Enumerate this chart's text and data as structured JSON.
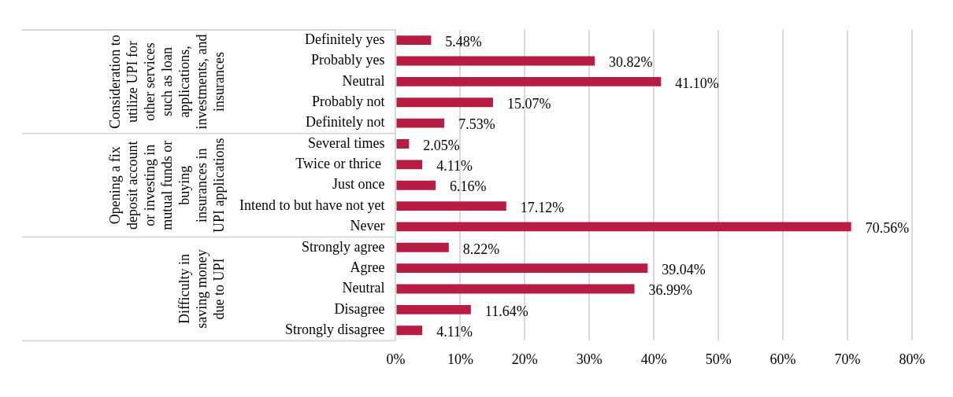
{
  "chart_data": {
    "type": "bar",
    "orientation": "horizontal",
    "categories": [
      "Definitely yes",
      "Probably yes",
      "Neutral",
      "Probably not",
      "Definitely not",
      "Several times",
      "Twice or thrice ",
      "Just once",
      "Intend to but have not yet",
      "Never",
      "Strongly agree",
      "Agree",
      "Neutral",
      "Disagree",
      "Strongly disagree"
    ],
    "values": [
      5.48,
      30.82,
      41.1,
      15.07,
      7.53,
      2.05,
      4.11,
      6.16,
      17.12,
      70.56,
      8.22,
      39.04,
      36.99,
      11.64,
      4.11
    ],
    "value_labels": [
      "5.48%",
      "30.82%",
      "41.10%",
      "15.07%",
      "7.53%",
      "2.05%",
      "4.11%",
      "6.16%",
      "17.12%",
      "70.56%",
      "8.22%",
      "39.04%",
      "36.99%",
      "11.64%",
      "4.11%"
    ],
    "color": "#b71d42",
    "xlim": [
      0,
      80
    ],
    "xticks": [
      {
        "value": 0,
        "label": "0%"
      },
      {
        "value": 10,
        "label": "10%"
      },
      {
        "value": 20,
        "label": "20%"
      },
      {
        "value": 30,
        "label": "30%"
      },
      {
        "value": 40,
        "label": "40%"
      },
      {
        "value": 50,
        "label": "50%"
      },
      {
        "value": 60,
        "label": "60%"
      },
      {
        "value": 70,
        "label": "70%"
      },
      {
        "value": 80,
        "label": "80%"
      }
    ],
    "grid": "x",
    "annotations": [
      "Consideration to utilize UPI for other services such as loan applications, investments, and insurances",
      "Opening a fix deposit account or investing in mutual funds or buying insurances in UPI applications",
      "Difficulty in saving money due to UPI"
    ]
  }
}
